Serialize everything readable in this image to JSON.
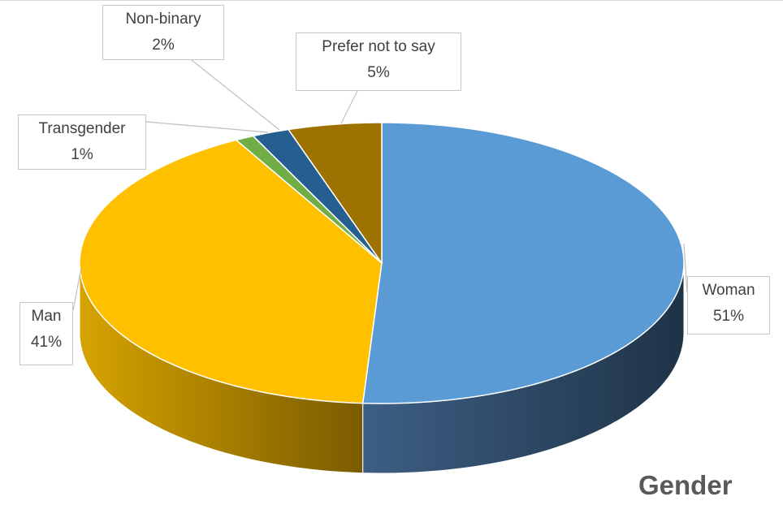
{
  "chart_data": {
    "type": "pie",
    "title": "Gender",
    "categories": [
      "Woman",
      "Man",
      "Transgender",
      "Non-binary",
      "Prefer not to say"
    ],
    "values": [
      51,
      41,
      1,
      2,
      5
    ],
    "value_labels": [
      "51%",
      "41%",
      "1%",
      "2%",
      "5%"
    ],
    "unit": "%",
    "colors": {
      "Woman": "#5b9bd5",
      "Man": "#ffc000",
      "Transgender": "#70ad47",
      "Non-binary": "#255e91",
      "Prefer not to say": "#9e7200"
    },
    "style": "3d-pie",
    "legend": "none",
    "data_labels": "category-and-percent-callouts"
  }
}
